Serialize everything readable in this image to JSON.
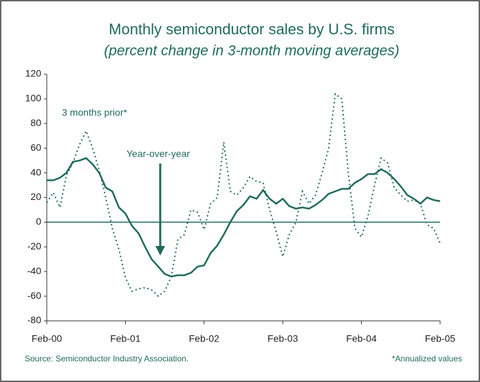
{
  "chart_data": {
    "type": "line",
    "title": "Monthly semiconductor sales by U.S. firms",
    "subtitle": "(percent change in 3-month moving averages)",
    "categories": [
      "Feb-00",
      null,
      null,
      null,
      null,
      null,
      null,
      null,
      null,
      null,
      null,
      null,
      "Feb-01",
      null,
      null,
      null,
      null,
      null,
      null,
      null,
      null,
      null,
      null,
      null,
      "Feb-02",
      null,
      null,
      null,
      null,
      null,
      null,
      null,
      null,
      null,
      null,
      null,
      "Feb-03",
      null,
      null,
      null,
      null,
      null,
      null,
      null,
      null,
      null,
      null,
      null,
      "Feb-04",
      null,
      null,
      null,
      null,
      null,
      null,
      null,
      null,
      null,
      null,
      null,
      "Feb-05"
    ],
    "series": [
      {
        "name": "Year-over-year",
        "color": "#1f6b5c",
        "style": "solid",
        "values": [
          34,
          34,
          36,
          40,
          49,
          50,
          52,
          47,
          40,
          28,
          25,
          12,
          7,
          -3,
          -9,
          -20,
          -30,
          -36,
          -42,
          -44,
          -43,
          -43,
          -41,
          -36,
          -35,
          -25,
          -19,
          -10,
          0,
          9,
          14,
          21,
          19,
          26,
          19,
          15,
          19,
          13,
          11,
          12,
          11,
          14,
          18,
          23,
          25,
          27,
          27,
          32,
          35,
          39,
          39,
          43,
          40,
          35,
          29,
          22,
          19,
          15,
          20,
          18,
          17
        ]
      },
      {
        "name": "3 months prior*",
        "color": "#1f6b5c",
        "style": "dotted",
        "values": [
          16,
          24,
          12,
          38,
          48,
          63,
          74,
          60,
          42,
          20,
          -5,
          -22,
          -45,
          -56,
          -54,
          -53,
          -55,
          -60,
          -56,
          -44,
          -14,
          -10,
          10,
          8,
          -6,
          15,
          20,
          65,
          25,
          22,
          28,
          37,
          33,
          32,
          10,
          -8,
          -28,
          -10,
          0,
          25,
          15,
          22,
          40,
          60,
          104,
          100,
          40,
          -5,
          -12,
          5,
          30,
          52,
          48,
          28,
          22,
          17,
          18,
          15,
          -2,
          -5,
          -17
        ]
      }
    ],
    "ylim": [
      -80,
      120
    ],
    "yticks": [
      -80,
      -60,
      -40,
      -20,
      0,
      20,
      40,
      60,
      80,
      100,
      120
    ],
    "source": "Source: Semiconductor Industry Association.",
    "note": "*Annualized values"
  }
}
